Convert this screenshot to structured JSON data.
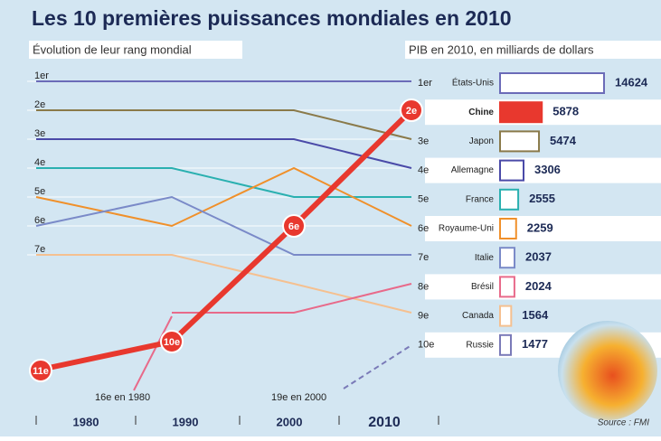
{
  "chart_data": [
    {
      "type": "line",
      "title": "Les 10 premières puissances mondiales en 2010",
      "subtitle": "Évolution de leur rang mondial",
      "categories": [
        "1980",
        "1990",
        "2000",
        "2010"
      ],
      "ylim": [
        0.5,
        12
      ],
      "inverted": true,
      "yticks": [
        {
          "value": 1,
          "label": "1er"
        },
        {
          "value": 2,
          "label": "2e"
        },
        {
          "value": 3,
          "label": "3e"
        },
        {
          "value": 4,
          "label": "4e"
        },
        {
          "value": 5,
          "label": "5e"
        },
        {
          "value": 6,
          "label": "6e"
        },
        {
          "value": 7,
          "label": "7e"
        }
      ],
      "grid": true,
      "series": [
        {
          "name": "États-Unis",
          "color": "#6b6bb8",
          "values": [
            1,
            1,
            1,
            1
          ]
        },
        {
          "name": "Japon",
          "color": "#8a7a4a",
          "values": [
            2,
            2,
            2,
            3
          ]
        },
        {
          "name": "Allemagne",
          "color": "#4a4aa8",
          "values": [
            3,
            3,
            3,
            4
          ]
        },
        {
          "name": "France",
          "color": "#2ab0b0",
          "values": [
            4,
            4,
            5,
            5
          ]
        },
        {
          "name": "Royaume-Uni",
          "color": "#f0902a",
          "values": [
            5,
            6,
            4,
            6
          ]
        },
        {
          "name": "Italie",
          "color": "#7a8ac8",
          "values": [
            6,
            5,
            7,
            7
          ]
        },
        {
          "name": "Canada",
          "color": "#f5c090",
          "values": [
            7,
            7,
            8,
            9
          ]
        },
        {
          "name": "Brésil",
          "color": "#e86a8a",
          "values": [
            null,
            9,
            9,
            8
          ]
        },
        {
          "name": "Russie",
          "color": "#7a7ab8",
          "values": [
            null,
            null,
            null,
            10
          ]
        },
        {
          "name": "Chine",
          "color": "#e8382e",
          "values": [
            11,
            10,
            6,
            2
          ],
          "value_labels": [
            "11e",
            "10e",
            "6e",
            "2e"
          ]
        }
      ],
      "annotations": [
        "16e en 1980",
        "19e en 2000"
      ],
      "source": "Source : FMI"
    },
    {
      "type": "hbar",
      "subtitle": "PIB en 2010, en milliards de dollars",
      "categories": [
        "États-Unis",
        "Chine",
        "Japon",
        "Allemagne",
        "France",
        "Royaume-Uni",
        "Italie",
        "Brésil",
        "Canada",
        "Russie"
      ],
      "rank_labels": [
        "1er",
        null,
        "3e",
        "4e",
        "5e",
        "6e",
        "7e",
        "8e",
        "9e",
        "10e"
      ],
      "values": [
        14624,
        5878,
        5474,
        3306,
        2555,
        2259,
        2037,
        2024,
        1564,
        1477
      ],
      "colors": [
        "#6b6bb8",
        "#e8382e",
        "#8a7a4a",
        "#4a4aa8",
        "#2ab0b0",
        "#f0902a",
        "#7a8ac8",
        "#e86a8a",
        "#f5c090",
        "#7a7ab8"
      ],
      "highlight": "Chine"
    }
  ]
}
